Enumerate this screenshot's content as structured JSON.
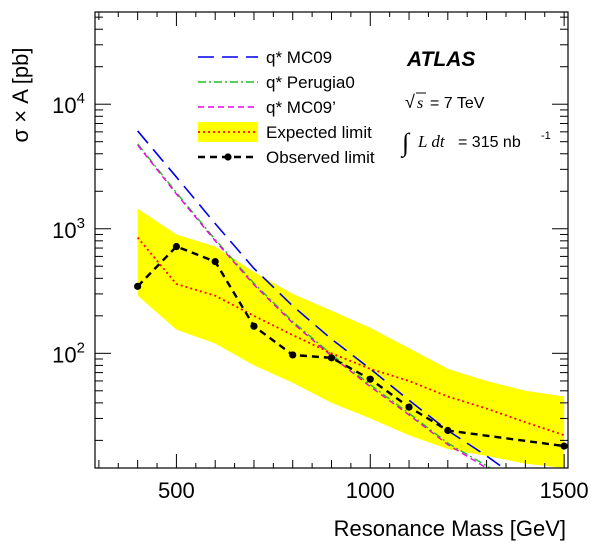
{
  "chart_data": {
    "type": "line",
    "title": "",
    "xlabel": "Resonance Mass [GeV]",
    "ylabel": "σ × A [pb]",
    "xlim": [
      290,
      1510
    ],
    "ylim": [
      12,
      55000
    ],
    "yscale": "log",
    "x_ticks": [
      {
        "value": 500,
        "label": "500"
      },
      {
        "value": 1000,
        "label": "1000"
      },
      {
        "value": 1500,
        "label": "1500"
      }
    ],
    "y_ticks": [
      {
        "value": 100,
        "base": "10",
        "exp": "2"
      },
      {
        "value": 1000,
        "base": "10",
        "exp": "3"
      },
      {
        "value": 10000,
        "base": "10",
        "exp": "4"
      }
    ],
    "grid": false,
    "legend_position": "top-center",
    "annotations": {
      "experiment": "ATLAS",
      "sqrt_s_value": "= 7 TeV",
      "luminosity_value": "= 315 nb",
      "luminosity_exp": "-1"
    },
    "band": {
      "name": "Expected limit",
      "color": "#ffff00",
      "x": [
        400,
        500,
        600,
        700,
        800,
        900,
        1000,
        1100,
        1200,
        1300,
        1400,
        1500
      ],
      "upper": [
        1450,
        900,
        720,
        450,
        300,
        220,
        160,
        110,
        75,
        60,
        50,
        45
      ],
      "lower": [
        290,
        155,
        120,
        80,
        58,
        40,
        30,
        22,
        17,
        15,
        13,
        12
      ]
    },
    "series": [
      {
        "name": "q* MC09",
        "style": "long-dash",
        "color": "#0000ee",
        "x": [
          400,
          500,
          600,
          700,
          800,
          900,
          1000,
          1100,
          1200,
          1300,
          1400
        ],
        "values": [
          6100,
          2600,
          1100,
          480,
          240,
          130,
          75,
          42,
          24,
          15,
          9
        ]
      },
      {
        "name": "q* Perugia0",
        "style": "dash-dot",
        "color": "#22bb22",
        "x": [
          400,
          500,
          600,
          700,
          800,
          900,
          1000,
          1100,
          1200,
          1300,
          1400
        ],
        "values": [
          4800,
          1950,
          820,
          365,
          180,
          98,
          56,
          33,
          19,
          12.5,
          8
        ]
      },
      {
        "name": "q* MC09’",
        "style": "short-dash",
        "color": "#ee00ee",
        "x": [
          400,
          500,
          600,
          700,
          800,
          900,
          1000,
          1100,
          1200,
          1300,
          1400
        ],
        "values": [
          4700,
          1900,
          800,
          355,
          175,
          95,
          54,
          32,
          18.5,
          12,
          7.5
        ]
      },
      {
        "name": "Expected limit",
        "style": "dotted",
        "color": "#ff0000",
        "x": [
          400,
          500,
          600,
          700,
          800,
          900,
          1000,
          1100,
          1200,
          1300,
          1400,
          1500
        ],
        "values": [
          850,
          360,
          290,
          200,
          140,
          100,
          75,
          60,
          45,
          36,
          28,
          22
        ]
      },
      {
        "name": "Observed limit",
        "style": "dashed-markers",
        "color": "#000000",
        "x": [
          400,
          500,
          600,
          700,
          800,
          900,
          1000,
          1100,
          1200,
          1500
        ],
        "values": [
          345,
          720,
          545,
          165,
          97,
          92,
          62,
          37,
          24,
          18
        ]
      }
    ]
  }
}
